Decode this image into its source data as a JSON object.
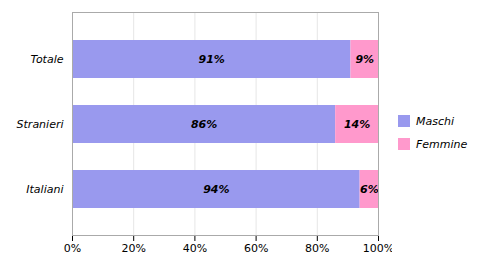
{
  "chart_data": {
    "type": "bar",
    "orientation": "horizontal",
    "stacked": true,
    "categories": [
      "Totale",
      "Stranieri",
      "Italiani"
    ],
    "series": [
      {
        "name": "Maschi",
        "color": "#9999ee",
        "values": [
          91,
          86,
          94
        ],
        "value_labels": [
          "91%",
          "86%",
          "94%"
        ]
      },
      {
        "name": "Femmine",
        "color": "#ff99cc",
        "values": [
          9,
          14,
          6
        ],
        "value_labels": [
          "9%",
          "14%",
          "6%"
        ]
      }
    ],
    "xlim": [
      0,
      100
    ],
    "xticks": [
      {
        "value": 0,
        "label": "0%"
      },
      {
        "value": 20,
        "label": "20%"
      },
      {
        "value": 40,
        "label": "40%"
      },
      {
        "value": 60,
        "label": "60%"
      },
      {
        "value": 80,
        "label": "80%"
      },
      {
        "value": 100,
        "label": "100%"
      }
    ],
    "grid": true,
    "data_labels": true,
    "legend": "right"
  }
}
